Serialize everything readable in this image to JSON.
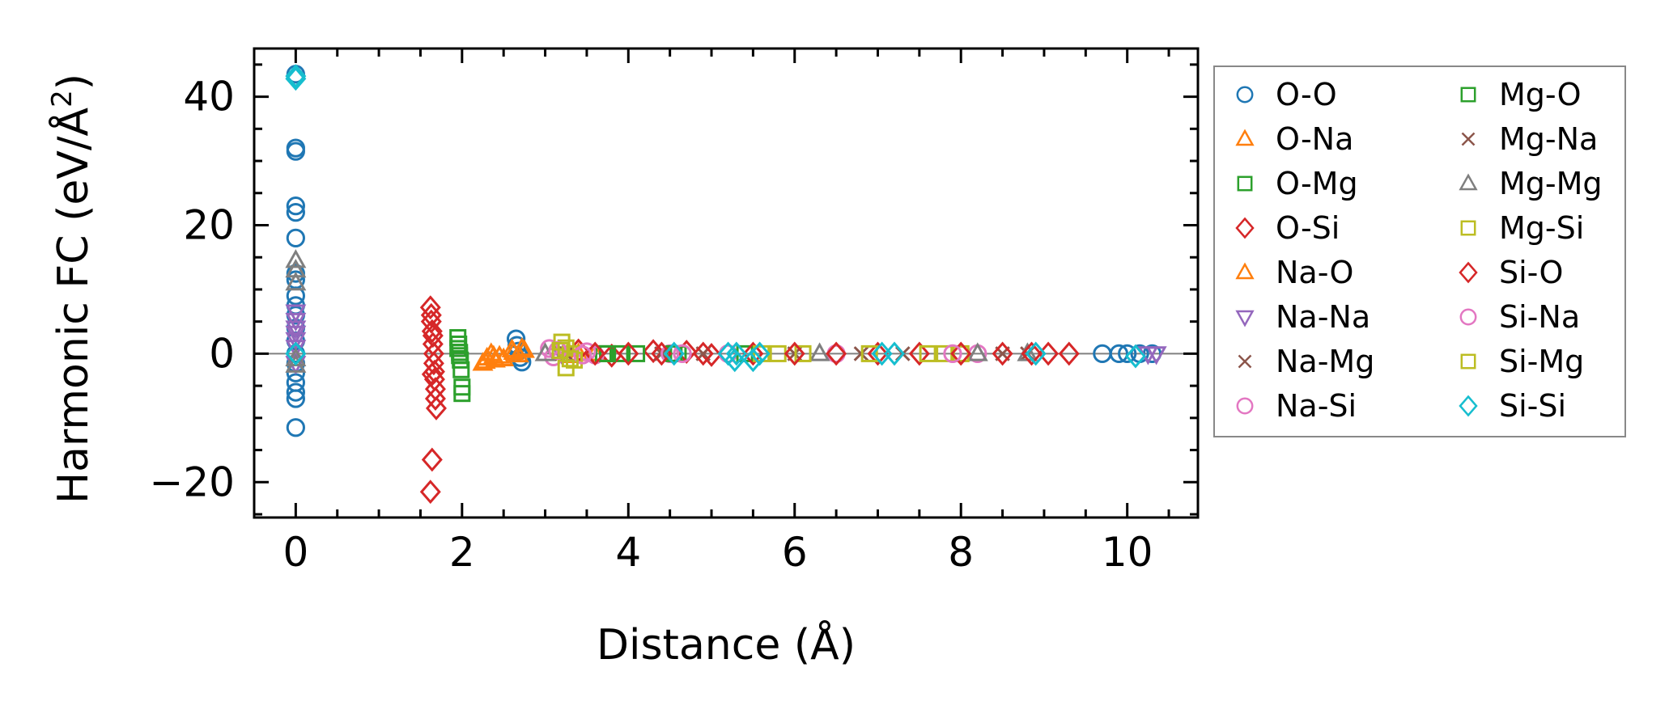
{
  "chart_data": {
    "type": "scatter",
    "xlabel": "Distance (Å)",
    "ylabel_main": "Harmonic FC (eV/Å",
    "ylabel_sup": "2",
    "ylabel_close": ")",
    "xlim": [
      -0.5,
      10.85
    ],
    "ylim": [
      -25.5,
      47.5
    ],
    "xticks": [
      0,
      2,
      4,
      6,
      8,
      10
    ],
    "xtick_labels": [
      "0",
      "2",
      "4",
      "6",
      "8",
      "10"
    ],
    "yticks": [
      -20,
      0,
      20,
      40
    ],
    "ytick_labels": [
      "−20",
      "0",
      "20",
      "40"
    ],
    "legend_position": "right, outside the axes",
    "zero_line": true,
    "series": [
      {
        "name": "O-O",
        "marker": "circle",
        "color": "#1f77b4",
        "points": [
          [
            0,
            43.5
          ],
          [
            0,
            32
          ],
          [
            0,
            31.5
          ],
          [
            0,
            23
          ],
          [
            0,
            22
          ],
          [
            0,
            18
          ],
          [
            0,
            12.5
          ],
          [
            0,
            11.5
          ],
          [
            0,
            9
          ],
          [
            0,
            7.5
          ],
          [
            0,
            6
          ],
          [
            0,
            4
          ],
          [
            0,
            2
          ],
          [
            0,
            0
          ],
          [
            0,
            -1.5
          ],
          [
            0,
            -3
          ],
          [
            0,
            -4.5
          ],
          [
            0,
            -6
          ],
          [
            0,
            -7
          ],
          [
            0,
            -11.5
          ],
          [
            2.65,
            2.3
          ],
          [
            2.66,
            1.3
          ],
          [
            2.68,
            0.4
          ],
          [
            2.7,
            -0.6
          ],
          [
            2.72,
            -1.3
          ],
          [
            9.7,
            0
          ],
          [
            9.9,
            0
          ],
          [
            10.0,
            0
          ],
          [
            10.15,
            0
          ],
          [
            10.3,
            0
          ]
        ]
      },
      {
        "name": "O-Na",
        "marker": "triangle-up",
        "color": "#ff7f0e",
        "points": [
          [
            2.25,
            -1.5
          ],
          [
            2.3,
            -0.7
          ],
          [
            2.35,
            0
          ],
          [
            2.4,
            -1
          ],
          [
            2.45,
            -0.4
          ],
          [
            2.6,
            0.6
          ],
          [
            2.68,
            -0.2
          ],
          [
            2.72,
            0.8
          ],
          [
            3.4,
            0
          ],
          [
            3.6,
            0
          ]
        ]
      },
      {
        "name": "O-Mg",
        "marker": "square",
        "color": "#2ca02c",
        "points": [
          [
            1.95,
            2.5
          ],
          [
            1.96,
            1.5
          ],
          [
            1.97,
            0.2
          ],
          [
            1.98,
            -1
          ],
          [
            1.99,
            -2.5
          ],
          [
            2.0,
            -5.2
          ],
          [
            2.0,
            -6.2
          ],
          [
            3.7,
            0
          ],
          [
            3.9,
            0
          ],
          [
            4.6,
            0
          ]
        ]
      },
      {
        "name": "O-Si",
        "marker": "diamond",
        "color": "#d62728",
        "points": [
          [
            1.62,
            7.2
          ],
          [
            1.63,
            5
          ],
          [
            1.64,
            3.5
          ],
          [
            1.65,
            2.8
          ],
          [
            1.65,
            1.5
          ],
          [
            1.66,
            0
          ],
          [
            1.66,
            -1.5
          ],
          [
            1.67,
            -2.8
          ],
          [
            1.67,
            -4
          ],
          [
            1.68,
            -5.5
          ],
          [
            1.68,
            -7
          ],
          [
            1.69,
            -8.5
          ],
          [
            1.64,
            -16.5
          ],
          [
            1.62,
            -21.5
          ],
          [
            3.4,
            0.5
          ],
          [
            3.8,
            -0.3
          ],
          [
            4.3,
            0.4
          ],
          [
            4.7,
            0.3
          ],
          [
            5.0,
            -0.2
          ]
        ]
      },
      {
        "name": "Na-O",
        "marker": "triangle-up",
        "color": "#ff7f0e",
        "points": [
          [
            2.28,
            -1.2
          ],
          [
            2.38,
            -0.4
          ],
          [
            2.5,
            -0.8
          ],
          [
            2.62,
            0.2
          ],
          [
            2.75,
            0.5
          ],
          [
            3.3,
            -0.3
          ]
        ]
      },
      {
        "name": "Na-Na",
        "marker": "triangle-down",
        "color": "#9467bd",
        "points": [
          [
            0,
            6.5
          ],
          [
            0,
            5.2
          ],
          [
            0,
            4
          ],
          [
            0,
            3.2
          ],
          [
            0,
            2.2
          ],
          [
            0,
            1
          ],
          [
            0,
            -1.5
          ],
          [
            3.2,
            0
          ],
          [
            10.25,
            0
          ],
          [
            10.35,
            0
          ]
        ]
      },
      {
        "name": "Na-Mg",
        "marker": "x",
        "color": "#8c564b",
        "points": [
          [
            3.2,
            0
          ],
          [
            4.4,
            0
          ],
          [
            6.0,
            0
          ],
          [
            7.3,
            0
          ],
          [
            8.8,
            0
          ]
        ]
      },
      {
        "name": "Na-Si",
        "marker": "circle",
        "color": "#e377c2",
        "points": [
          [
            3.05,
            0.8
          ],
          [
            3.1,
            -0.5
          ],
          [
            3.5,
            0.3
          ],
          [
            3.6,
            -0.2
          ],
          [
            4.5,
            0
          ],
          [
            5.2,
            0
          ],
          [
            6.5,
            0
          ],
          [
            8.2,
            0
          ]
        ]
      },
      {
        "name": "Mg-O",
        "marker": "square",
        "color": "#2ca02c",
        "points": [
          [
            1.95,
            0.8
          ],
          [
            1.97,
            -0.3
          ],
          [
            3.75,
            0
          ],
          [
            4.1,
            0
          ],
          [
            4.55,
            0
          ],
          [
            5.4,
            0
          ]
        ]
      },
      {
        "name": "Mg-Na",
        "marker": "x",
        "color": "#8c564b",
        "points": [
          [
            3.25,
            0
          ],
          [
            4.9,
            0
          ],
          [
            6.8,
            0
          ],
          [
            8.5,
            0
          ]
        ]
      },
      {
        "name": "Mg-Mg",
        "marker": "triangle-up",
        "color": "#7f7f7f",
        "points": [
          [
            0,
            14.5
          ],
          [
            0,
            13
          ],
          [
            0,
            11
          ],
          [
            0,
            -0.8
          ],
          [
            0,
            -1.8
          ],
          [
            3.0,
            0
          ],
          [
            6.3,
            0
          ],
          [
            8.2,
            0
          ],
          [
            8.8,
            0
          ]
        ]
      },
      {
        "name": "Mg-Si",
        "marker": "square",
        "color": "#bcbd22",
        "points": [
          [
            3.2,
            1.8
          ],
          [
            3.25,
            0.9
          ],
          [
            3.3,
            0
          ],
          [
            3.35,
            -1
          ],
          [
            3.25,
            -2.2
          ],
          [
            5.8,
            0
          ],
          [
            6.1,
            0
          ],
          [
            7.8,
            0
          ],
          [
            8.0,
            0
          ]
        ]
      },
      {
        "name": "Si-O",
        "marker": "diamond",
        "color": "#d62728",
        "points": [
          [
            1.63,
            6
          ],
          [
            1.64,
            -3.2
          ],
          [
            3.6,
            0
          ],
          [
            4.0,
            0
          ],
          [
            4.4,
            0
          ],
          [
            4.9,
            0
          ],
          [
            5.5,
            0
          ],
          [
            6.0,
            0
          ],
          [
            6.5,
            0
          ],
          [
            7.0,
            0
          ],
          [
            7.5,
            0
          ],
          [
            8.0,
            0
          ],
          [
            8.5,
            0
          ],
          [
            8.85,
            0
          ],
          [
            9.05,
            0
          ],
          [
            9.3,
            0
          ]
        ]
      },
      {
        "name": "Si-Na",
        "marker": "circle",
        "color": "#e377c2",
        "points": [
          [
            3.15,
            0.5
          ],
          [
            3.45,
            -0.2
          ],
          [
            4.65,
            0
          ],
          [
            7.9,
            0
          ]
        ]
      },
      {
        "name": "Si-Mg",
        "marker": "square",
        "color": "#bcbd22",
        "points": [
          [
            3.18,
            0.5
          ],
          [
            3.3,
            -0.8
          ],
          [
            5.6,
            0
          ],
          [
            6.9,
            0
          ],
          [
            7.6,
            0
          ]
        ]
      },
      {
        "name": "Si-Si",
        "marker": "diamond",
        "color": "#17becf",
        "points": [
          [
            0,
            43.2
          ],
          [
            0,
            42.8
          ],
          [
            0,
            0
          ],
          [
            4.55,
            0
          ],
          [
            5.2,
            0
          ],
          [
            5.28,
            -1
          ],
          [
            5.3,
            0
          ],
          [
            5.5,
            -1
          ],
          [
            5.58,
            0
          ],
          [
            7.05,
            0
          ],
          [
            7.2,
            0
          ],
          [
            8.9,
            0
          ],
          [
            10.1,
            -0.4
          ]
        ]
      }
    ]
  }
}
